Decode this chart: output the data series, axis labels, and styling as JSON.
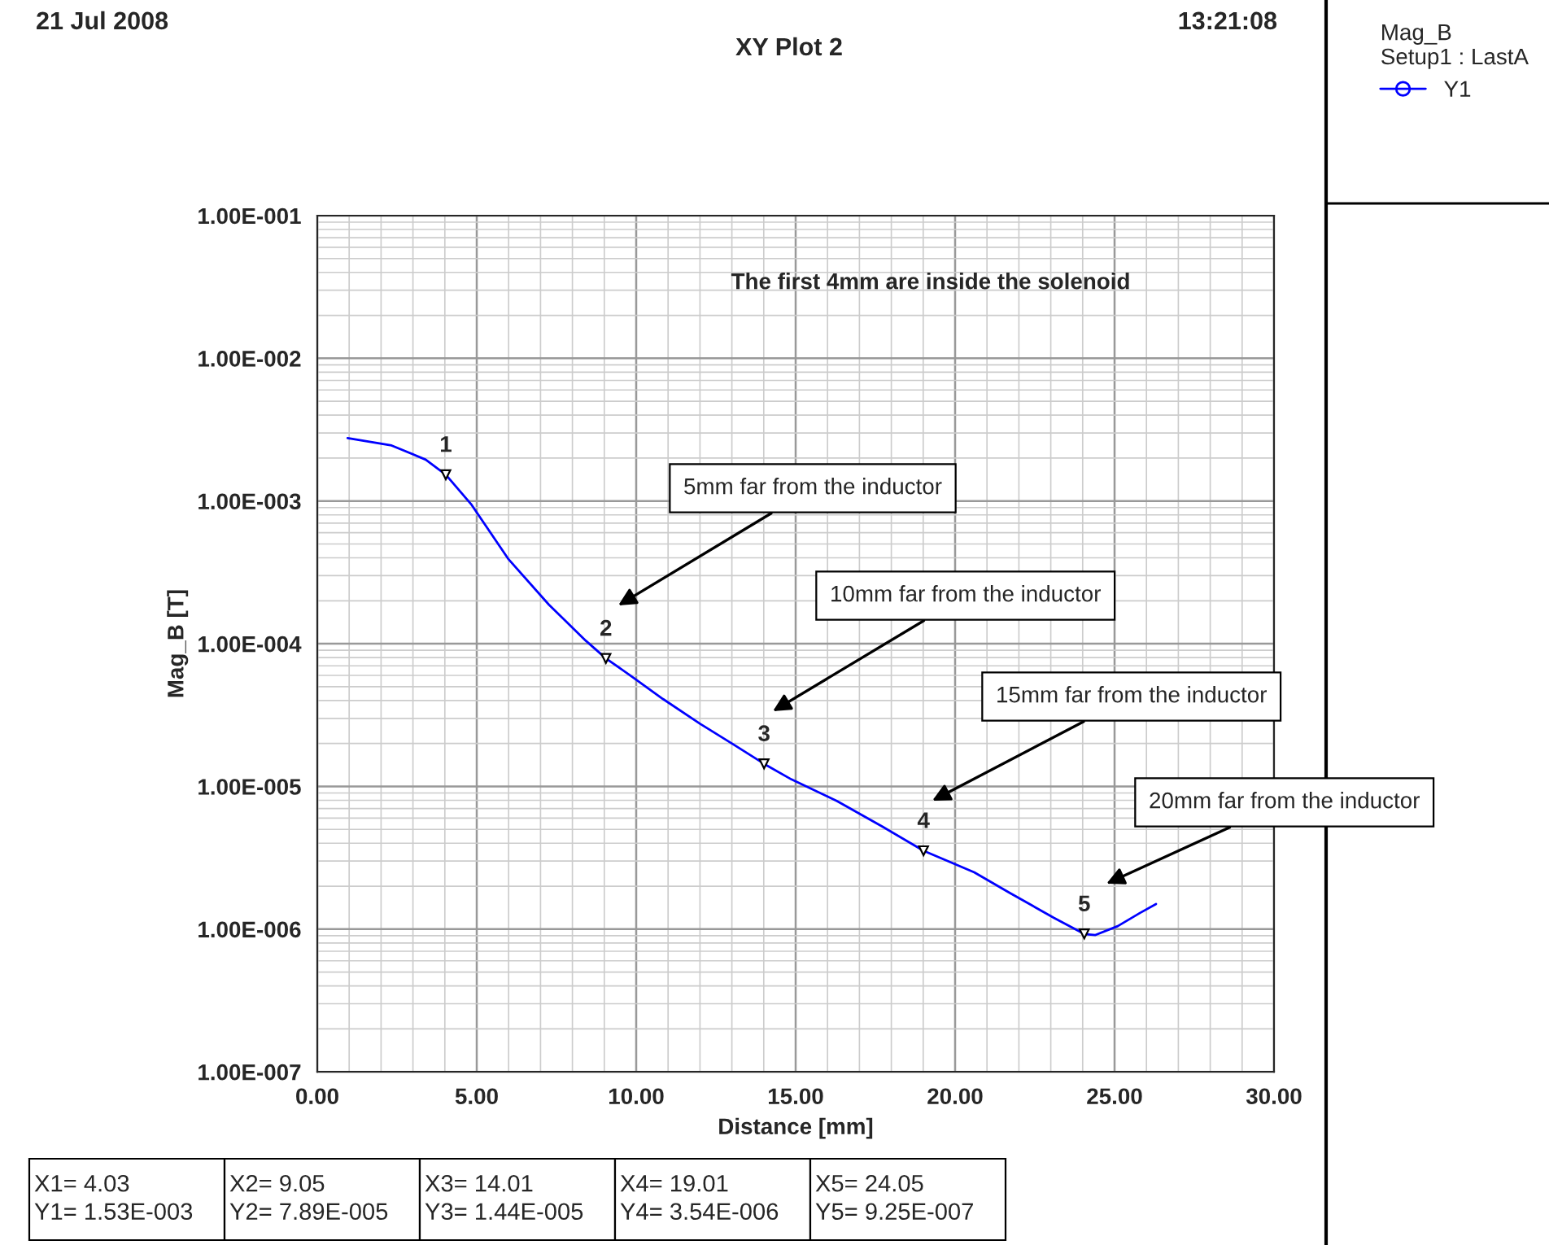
{
  "chart_data": {
    "type": "line",
    "title": "XY Plot 2",
    "xlabel": "Distance [mm]",
    "ylabel": "Mag_B [T]",
    "log": "y",
    "grid": true,
    "legend": "right",
    "marker": "none",
    "line_style": "solid",
    "legend_title": "Mag_B\nSetup1 : LastA",
    "xlim": [
      0,
      30
    ],
    "xticks": [
      {
        "value": 0,
        "label": "0.00"
      },
      {
        "value": 5,
        "label": "5.00"
      },
      {
        "value": 10,
        "label": "10.00"
      },
      {
        "value": 15,
        "label": "15.00"
      },
      {
        "value": 20,
        "label": "20.00"
      },
      {
        "value": 25,
        "label": "25.00"
      },
      {
        "value": 30,
        "label": "30.00"
      }
    ],
    "ylim": [
      1e-07,
      0.1
    ],
    "yticks": [
      {
        "value": 1e-07,
        "label": "1.00E-007"
      },
      {
        "value": 1e-06,
        "label": "1.00E-006"
      },
      {
        "value": 1e-05,
        "label": "1.00E-005"
      },
      {
        "value": 0.0001,
        "label": "1.00E-004"
      },
      {
        "value": 0.001,
        "label": "1.00E-003"
      },
      {
        "value": 0.01,
        "label": "1.00E-002"
      },
      {
        "value": 0.1,
        "label": "1.00E-001"
      }
    ],
    "series": [
      {
        "name": "Y1",
        "color": "#0000ff",
        "x": [
          0.95,
          2.33,
          3.4,
          4.03,
          4.84,
          6.0,
          7.26,
          8.42,
          9.05,
          9.86,
          10.84,
          12.0,
          13.08,
          14.01,
          14.87,
          16.3,
          17.74,
          19.01,
          20.6,
          21.7,
          23.1,
          24.05,
          24.4,
          25.1,
          25.8,
          26.3
        ],
        "values": [
          0.00276,
          0.00245,
          0.00195,
          0.00153,
          0.00094,
          0.00039,
          0.000188,
          0.000105,
          7.89e-05,
          5.9e-05,
          4.1e-05,
          2.75e-05,
          1.95e-05,
          1.44e-05,
          1.12e-05,
          7.9e-06,
          5.2e-06,
          3.54e-06,
          2.5e-06,
          1.8e-06,
          1.2e-06,
          9.25e-07,
          9.1e-07,
          1.05e-06,
          1.3e-06,
          1.5e-06
        ]
      }
    ],
    "annotations": [
      "21 Jul 2008",
      "13:21:08",
      "The first 4mm are inside the solenoid",
      {
        "text": "1",
        "x": 4.03,
        "y": 0.00153
      },
      {
        "text": "2",
        "x": 9.05,
        "y": 7.89e-05
      },
      {
        "text": "3",
        "x": 14.01,
        "y": 1.44e-05
      },
      {
        "text": "4",
        "x": 19.01,
        "y": 3.54e-06
      },
      {
        "text": "5",
        "x": 24.05,
        "y": 9.25e-07
      },
      "5mm far from the inductor",
      "10mm far from the inductor",
      "15mm far from the inductor",
      "20mm far from the inductor",
      "X1= 4.03\nY1= 1.53E-003",
      "X2= 9.05\nY2= 7.89E-005",
      "X3= 14.01\nY3= 1.44E-005",
      "X4= 19.01\nY4= 3.54E-006",
      "X5= 24.05\nY5= 9.25E-007"
    ]
  }
}
